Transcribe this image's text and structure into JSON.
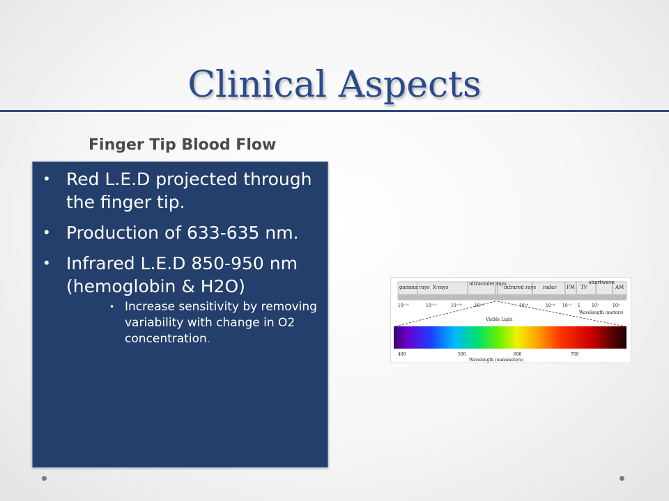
{
  "slide": {
    "title": "Clinical Aspects",
    "subtitle": "Finger Tip Blood Flow",
    "bullets": [
      {
        "text": "Red L.E.D projected through the finger tip."
      },
      {
        "text": "Production of 633-635 nm."
      },
      {
        "text": "Infrared L.E.D 850-950 nm (hemoglobin & H2O)",
        "sub": [
          {
            "text": "Increase sensitivity by removing variability with change in O2 concentration",
            "trail": "."
          }
        ]
      }
    ],
    "bullet_symbol": "•"
  },
  "spectrum": {
    "bands": [
      "gamma rays",
      "X-rays",
      "ultraviolet rays",
      "infrared rays",
      "radar",
      "FM",
      "TV",
      "shortwave",
      "AM"
    ],
    "scale_ticks": [
      "10⁻¹⁴",
      "10⁻¹²",
      "10⁻¹⁰",
      "10⁻⁸",
      "10⁻⁶",
      "10⁻⁴",
      "10⁻²",
      "1",
      "10²",
      "10⁴"
    ],
    "scale_label": "Wavelength (meters)",
    "visible_label": "Visible Light",
    "nm_ticks": [
      "400",
      "500",
      "600",
      "700"
    ],
    "nm_label": "Wavelength (nanometers)"
  },
  "colors": {
    "title": "#2a4a8a",
    "rule": "#2d4c7e",
    "box_bg": "#243f6b",
    "box_border": "#6f86b0"
  }
}
